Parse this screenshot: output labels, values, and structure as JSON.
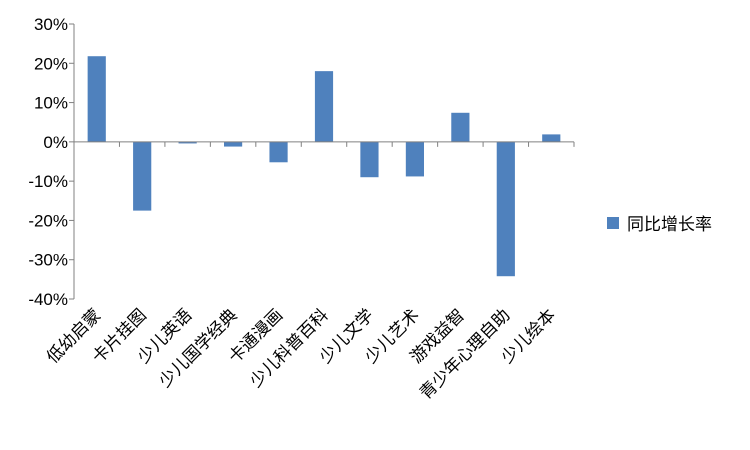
{
  "chart_data": {
    "type": "bar",
    "categories": [
      "低幼启蒙",
      "卡片挂图",
      "少儿英语",
      "少儿国学经典",
      "卡通漫画",
      "少儿科普百科",
      "少儿文学",
      "少儿艺术",
      "游戏益智",
      "青少年心理自助",
      "少儿绘本"
    ],
    "series": [
      {
        "name": "同比增长率",
        "values": [
          21.8,
          -17.5,
          -0.4,
          -1.2,
          -5.2,
          18.0,
          -9.0,
          -8.8,
          7.4,
          -34.2,
          1.9
        ]
      }
    ],
    "ylim": [
      -40,
      30
    ],
    "yticks": [
      -40,
      -30,
      -20,
      -10,
      0,
      10,
      20,
      30
    ],
    "y_unit": "%",
    "legend_position": "right",
    "grid": false,
    "bar_color": "#4F81BD"
  }
}
